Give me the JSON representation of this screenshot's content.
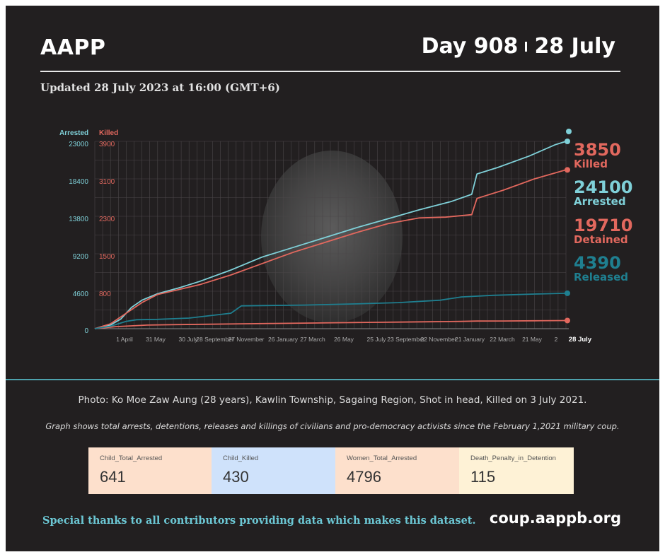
{
  "header": {
    "brand": "AAPP",
    "day": "Day 908",
    "date": "28 July",
    "updated": "Updated 28 July 2023 at 16:00 (GMT+6)"
  },
  "chart_data": {
    "type": "line",
    "axis_titles": {
      "left_primary": "Arrested",
      "left_secondary": "Killed"
    },
    "arrested_axis_ticks": [
      "23000",
      "18400",
      "13800",
      "9200",
      "4600",
      "0"
    ],
    "killed_axis_ticks": [
      "3900",
      "3100",
      "2300",
      "1500",
      "800"
    ],
    "arrested_axis_range": [
      0,
      23000
    ],
    "x_tick_labels": [
      "1 April",
      "31 May",
      "30 July",
      "28 September",
      "27 November",
      "26 January",
      "27 March",
      "26 May",
      "25 July",
      "23 September",
      "22 November",
      "21 January",
      "22 March",
      "21 May",
      "2",
      "28 July"
    ],
    "grid": true,
    "series": [
      {
        "name": "Killed",
        "color": "#e2685e",
        "final_value": 3850,
        "points": [
          [
            0,
            0
          ],
          [
            4,
            0.25
          ],
          [
            10,
            0.44
          ],
          [
            16,
            0.5
          ],
          [
            22,
            0.55
          ],
          [
            28,
            0.6
          ],
          [
            34,
            0.64
          ],
          [
            40,
            0.69
          ],
          [
            46,
            0.73
          ],
          [
            52,
            0.77
          ],
          [
            58,
            0.81
          ],
          [
            64,
            0.85
          ],
          [
            70,
            0.89
          ],
          [
            73,
            0.94
          ],
          [
            78,
            0.95
          ],
          [
            84,
            0.97
          ],
          [
            90,
            1.0
          ]
        ]
      },
      {
        "name": "Arrested",
        "color": "#7fd0d8",
        "final_value": 24100,
        "points": [
          [
            0,
            0
          ],
          [
            3,
            0.45
          ],
          [
            5,
            1.2
          ],
          [
            7,
            2.6
          ],
          [
            9,
            3.5
          ],
          [
            12,
            4.3
          ],
          [
            16,
            5.0
          ],
          [
            20,
            5.8
          ],
          [
            26,
            7.2
          ],
          [
            32,
            8.8
          ],
          [
            38,
            10.0
          ],
          [
            44,
            11.2
          ],
          [
            50,
            12.4
          ],
          [
            56,
            13.5
          ],
          [
            62,
            14.6
          ],
          [
            68,
            15.6
          ],
          [
            72,
            16.5
          ],
          [
            73,
            19.0
          ],
          [
            77,
            19.8
          ],
          [
            83,
            21.2
          ],
          [
            88,
            22.6
          ],
          [
            90,
            23.0
          ]
        ]
      },
      {
        "name": "Detained",
        "color": "#e2685e",
        "final_value": 19710,
        "points": [
          [
            0,
            0
          ],
          [
            3,
            0.6
          ],
          [
            6,
            1.9
          ],
          [
            9,
            3.2
          ],
          [
            12,
            4.2
          ],
          [
            16,
            4.8
          ],
          [
            20,
            5.4
          ],
          [
            26,
            6.6
          ],
          [
            32,
            8.0
          ],
          [
            38,
            9.4
          ],
          [
            44,
            10.6
          ],
          [
            50,
            11.8
          ],
          [
            56,
            12.9
          ],
          [
            62,
            13.6
          ],
          [
            67,
            13.7
          ],
          [
            72,
            14.0
          ],
          [
            73,
            16.0
          ],
          [
            78,
            17.0
          ],
          [
            84,
            18.4
          ],
          [
            90,
            19.5
          ]
        ]
      },
      {
        "name": "Released",
        "color": "#1f7f90",
        "final_value": 4390,
        "points": [
          [
            0,
            0
          ],
          [
            3,
            0.3
          ],
          [
            6,
            0.9
          ],
          [
            8,
            1.1
          ],
          [
            12,
            1.15
          ],
          [
            18,
            1.3
          ],
          [
            26,
            1.9
          ],
          [
            28,
            2.8
          ],
          [
            40,
            2.9
          ],
          [
            50,
            3.05
          ],
          [
            58,
            3.2
          ],
          [
            66,
            3.5
          ],
          [
            70,
            3.9
          ],
          [
            76,
            4.1
          ],
          [
            84,
            4.25
          ],
          [
            90,
            4.35
          ]
        ]
      }
    ]
  },
  "legend": [
    {
      "value": "3850",
      "label": "Killed",
      "color": "#e2685e"
    },
    {
      "value": "24100",
      "label": "Arrested",
      "color": "#7fd0d8"
    },
    {
      "value": "19710",
      "label": "Detained",
      "color": "#e2685e"
    },
    {
      "value": "4390",
      "label": "Released",
      "color": "#1f7f90"
    }
  ],
  "photo_caption": "Photo: Ko Moe Zaw Aung (28 years), Kawlin Township, Sagaing Region, Shot in head, Killed on 3 July 2021.",
  "graph_note": "Graph shows total arrests, detentions, releases and killings of civilians and pro-democracy activists since the February 1,2021 military coup.",
  "stats": [
    {
      "label": "Child_Total_Arrested",
      "value": "641",
      "bg": "#fde0cc"
    },
    {
      "label": "Child_Killed",
      "value": "430",
      "bg": "#cfe2fb"
    },
    {
      "label": "Women_Total_Arrested",
      "value": "4796",
      "bg": "#fde0cc"
    },
    {
      "label": "Death_Penalty_in_Detention",
      "value": "115",
      "bg": "#fef2d6"
    }
  ],
  "footer": {
    "thanks": "Special thanks to all contributors providing data which makes this dataset.",
    "site": "coup.aappb.org"
  }
}
